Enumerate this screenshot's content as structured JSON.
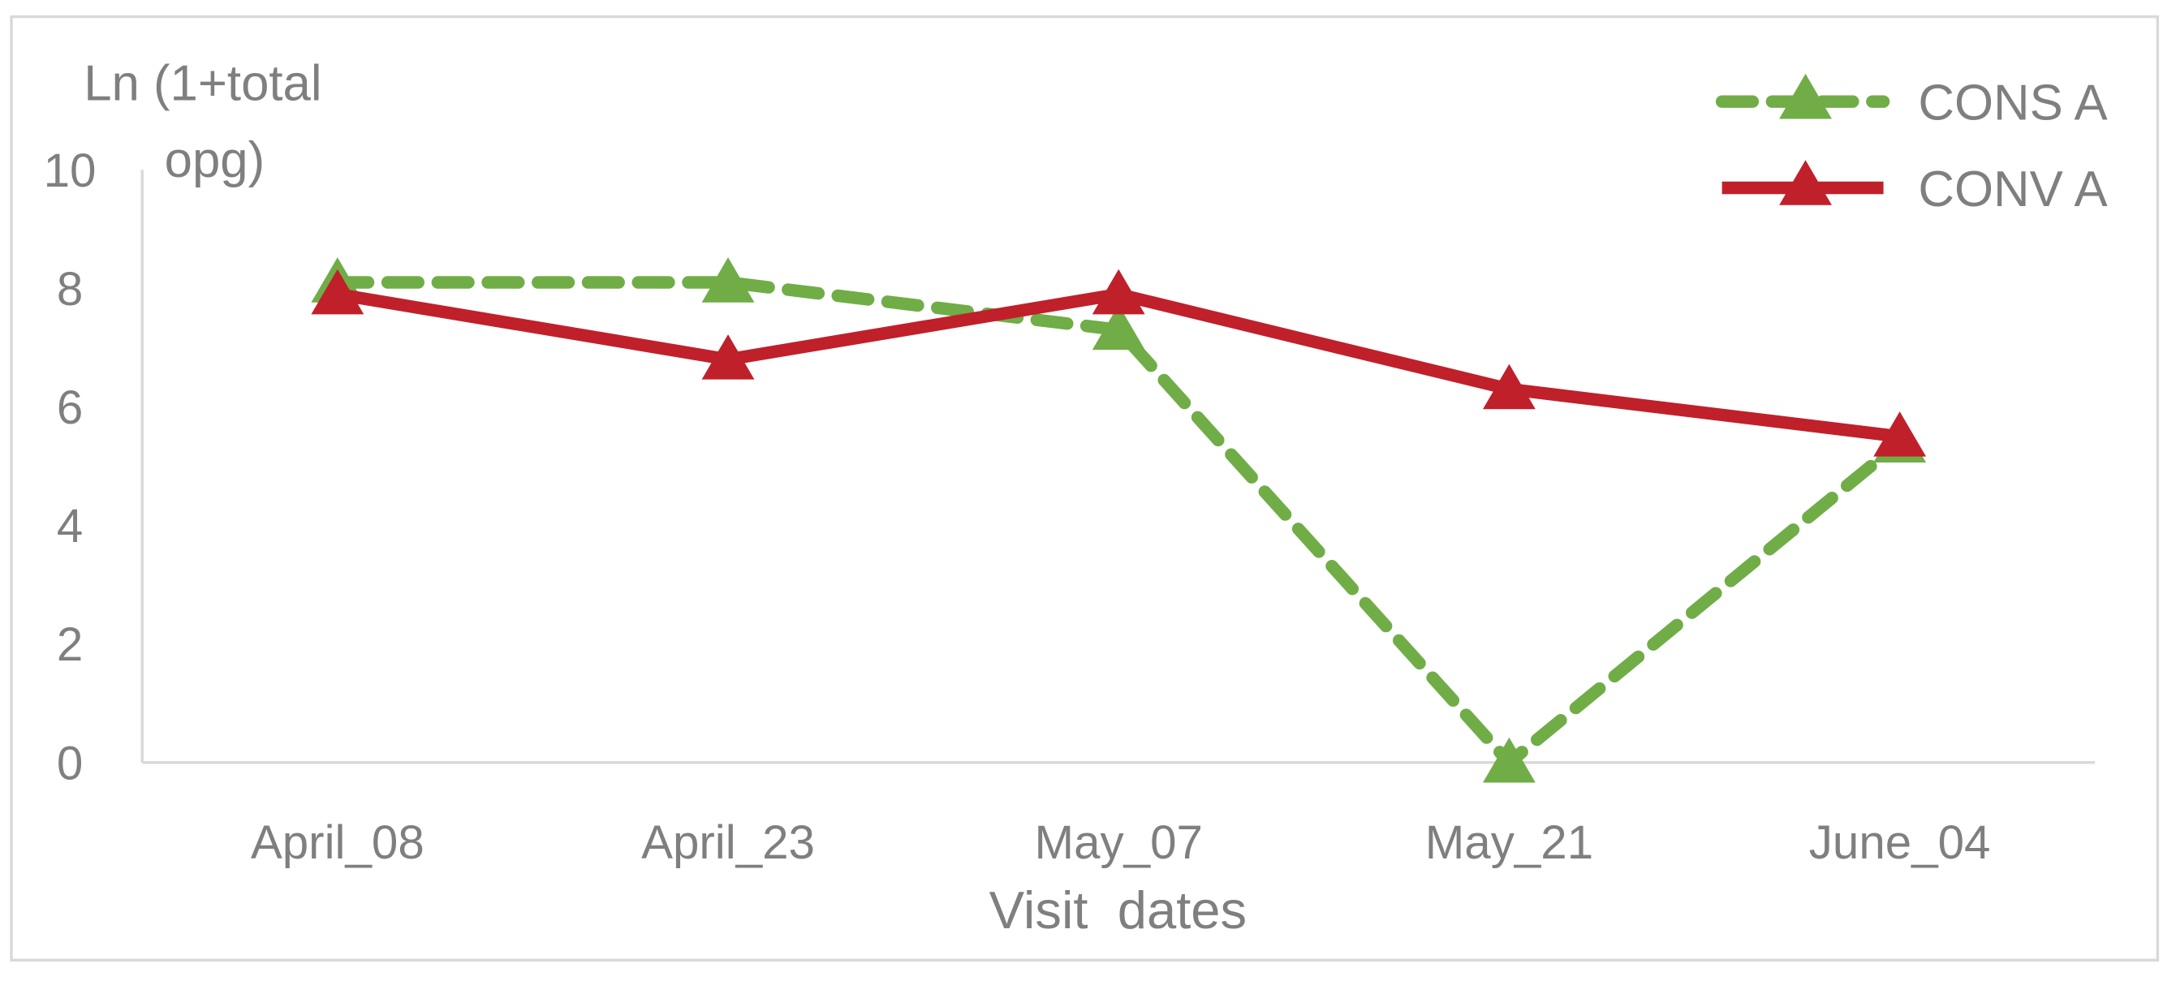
{
  "chart_data": {
    "type": "line",
    "y_label": [
      "Ln (1+total",
      "opg)"
    ],
    "x_label": "Visit  dates",
    "categories": [
      "April_08",
      "April_23",
      "May_07",
      "May_21",
      "June_04"
    ],
    "series": [
      {
        "name": "CONS A",
        "color": "#70ad47",
        "dashed": true,
        "values": [
          8.1,
          8.1,
          7.3,
          0,
          5.4
        ]
      },
      {
        "name": "CONV A",
        "color": "#c0202a",
        "dashed": false,
        "values": [
          7.9,
          6.8,
          7.9,
          6.3,
          5.5
        ]
      }
    ],
    "ylim": [
      0,
      10
    ],
    "yticks": [
      0,
      2,
      4,
      6,
      8,
      10
    ],
    "grid": false,
    "legend": "top-right"
  }
}
